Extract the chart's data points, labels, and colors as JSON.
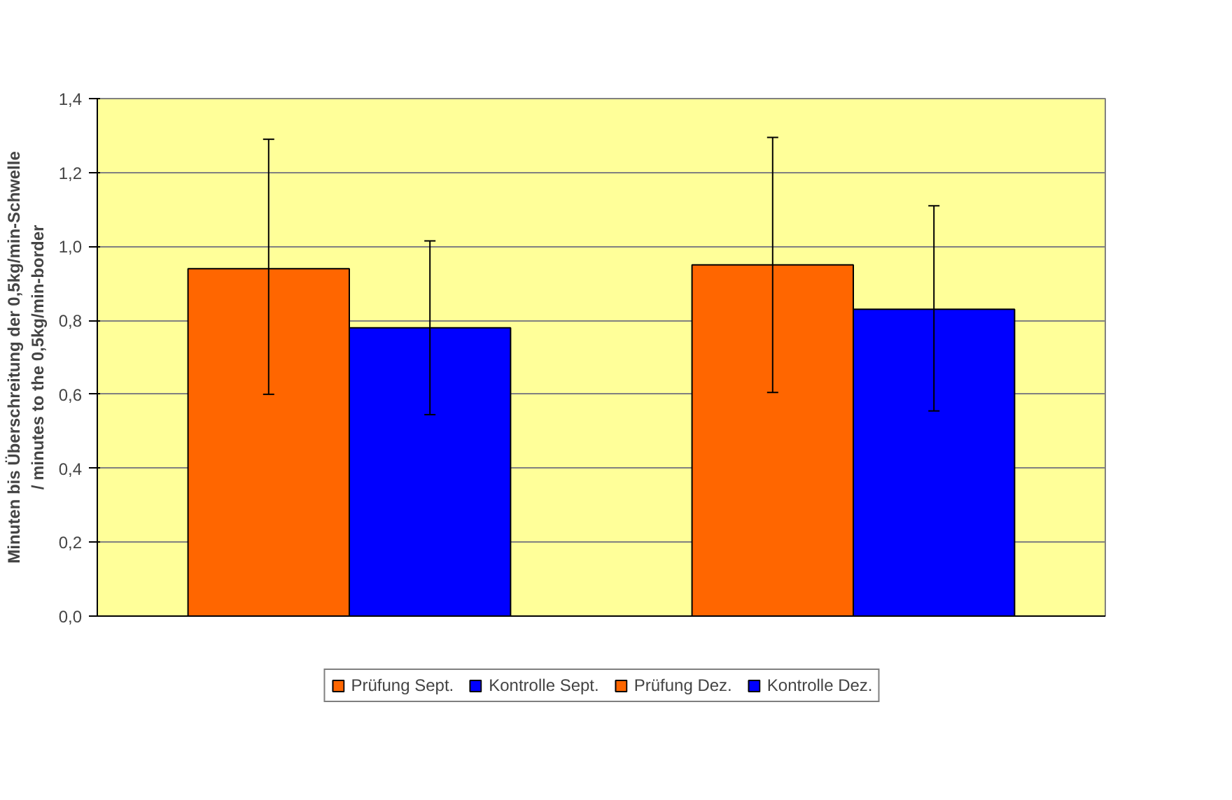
{
  "chart_data": {
    "type": "bar",
    "ylabel": "Minuten bis Überschreitung der 0,5kg/min-Schwelle / minutes to the 0,5kg/min-border",
    "categories": [
      null,
      null
    ],
    "series": [
      {
        "name": "Prüfung Sept.",
        "color": "#ff6600",
        "values": [
          0.94,
          null
        ],
        "errors": [
          [
            0.6,
            1.29
          ],
          null
        ]
      },
      {
        "name": "Kontrolle Sept.",
        "color": "#0000ff",
        "values": [
          0.78,
          null
        ],
        "errors": [
          [
            0.545,
            1.015
          ],
          null
        ]
      },
      {
        "name": "Prüfung Dez.",
        "color": "#ff6600",
        "values": [
          null,
          0.95
        ],
        "errors": [
          null,
          [
            0.605,
            1.295
          ]
        ]
      },
      {
        "name": "Kontrolle Dez.",
        "color": "#0000ff",
        "values": [
          null,
          0.83
        ],
        "errors": [
          null,
          [
            0.555,
            1.11
          ]
        ]
      }
    ],
    "ylim": [
      0,
      1.4
    ],
    "yticks": [
      {
        "value": 0,
        "label": "0,0"
      },
      {
        "value": 0.2,
        "label": "0,2"
      },
      {
        "value": 0.4,
        "label": "0,4"
      },
      {
        "value": 0.6,
        "label": "0,6"
      },
      {
        "value": 0.8,
        "label": "0,8"
      },
      {
        "value": 1.0,
        "label": "1,0"
      },
      {
        "value": 1.2,
        "label": "1,2"
      },
      {
        "value": 1.4,
        "label": "1,4"
      }
    ],
    "grid": "y",
    "legend": "bottom"
  }
}
